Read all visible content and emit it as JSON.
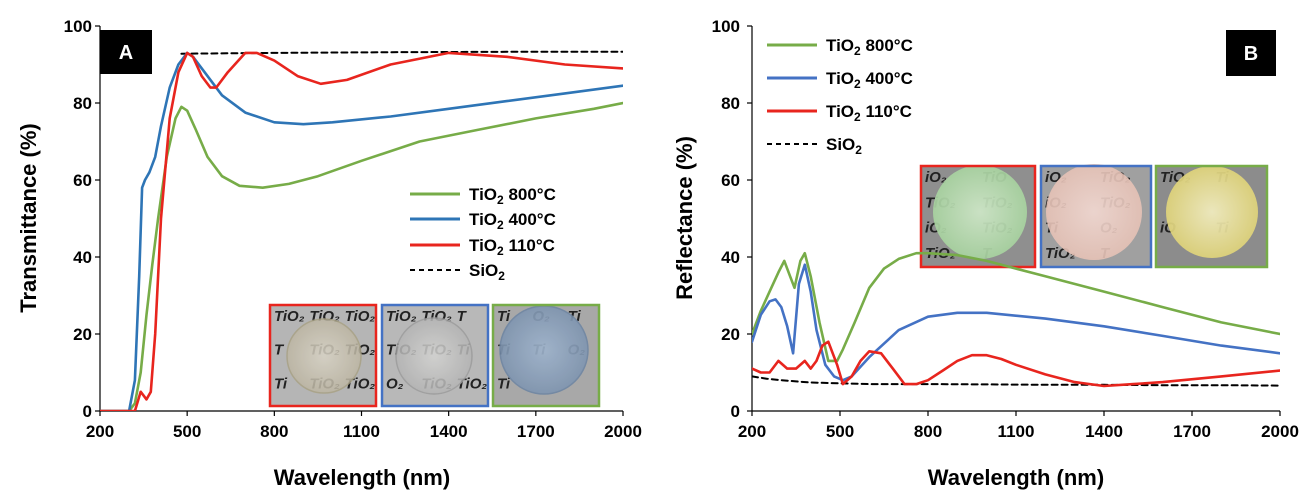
{
  "chart_data": [
    {
      "panel": "A",
      "type": "line",
      "title": "",
      "xlabel": "Wavelength (nm)",
      "ylabel": "Transmittance (%)",
      "xlim": [
        200,
        2000
      ],
      "ylim": [
        0,
        100
      ],
      "xticks": [
        200,
        500,
        800,
        1100,
        1400,
        1700,
        2000
      ],
      "yticks": [
        0,
        20,
        40,
        60,
        80,
        100
      ],
      "grid": false,
      "legend_position": "center-right",
      "series": [
        {
          "name": "TiO2 800°C",
          "color": "#77AC48",
          "dashed": false,
          "x": [
            200,
            300,
            320,
            340,
            360,
            380,
            400,
            430,
            460,
            480,
            500,
            530,
            570,
            620,
            680,
            760,
            850,
            950,
            1100,
            1300,
            1500,
            1700,
            1900,
            2000
          ],
          "y": [
            0,
            0,
            2,
            10,
            25,
            38,
            50,
            66,
            76,
            79,
            78,
            73,
            66,
            61,
            58.5,
            58,
            59,
            61,
            65,
            70,
            73,
            76,
            78.5,
            80
          ]
        },
        {
          "name": "TiO2 400°C",
          "color": "#2E75B6",
          "dashed": false,
          "x": [
            200,
            300,
            320,
            335,
            345,
            355,
            370,
            390,
            410,
            440,
            470,
            500,
            520,
            560,
            620,
            700,
            800,
            900,
            1000,
            1200,
            1400,
            1600,
            1800,
            2000
          ],
          "y": [
            0,
            0,
            8,
            35,
            58,
            60,
            62,
            66,
            74,
            84,
            90,
            93,
            92,
            88,
            82,
            77.5,
            75,
            74.5,
            75,
            76.5,
            78.5,
            80.5,
            82.5,
            84.5
          ]
        },
        {
          "name": "TiO2 110°C",
          "color": "#E8251E",
          "dashed": false,
          "x": [
            200,
            320,
            340,
            350,
            360,
            375,
            390,
            410,
            440,
            470,
            500,
            520,
            550,
            580,
            600,
            640,
            700,
            740,
            800,
            880,
            960,
            1050,
            1200,
            1400,
            1600,
            1800,
            2000
          ],
          "y": [
            0,
            0,
            5,
            4,
            3,
            5,
            20,
            50,
            76,
            88,
            93,
            92,
            87,
            84,
            84,
            88,
            93,
            93,
            91,
            87,
            85,
            86,
            90,
            93,
            92,
            90,
            89
          ]
        },
        {
          "name": "SiO2",
          "color": "#000000",
          "dashed": true,
          "x": [
            480,
            800,
            1200,
            1600,
            2000
          ],
          "y": [
            92.8,
            93,
            93.2,
            93.3,
            93.3
          ]
        }
      ],
      "legend": [
        "TiO₂ 800°C",
        "TiO₂ 400°C",
        "TiO₂ 110°C",
        "SiO₂"
      ],
      "inset_photo_text": [
        "TiO₂",
        "TiO₂",
        "TiO₂",
        "T",
        "TiO₂",
        "TiO₂",
        "Ti",
        "TiO₂",
        "TiO₂",
        "TiO₂",
        "TiO₂",
        "T",
        "TiO₂",
        "TiO₂",
        "Ti",
        "O₂",
        "TiO₂",
        "TiO₂",
        "Ti",
        "O₂",
        "Ti",
        "Ti",
        "Ti",
        "O₂",
        "Ti"
      ]
    },
    {
      "panel": "B",
      "type": "line",
      "title": "",
      "xlabel": "Wavelength (nm)",
      "ylabel": "Reflectance (%)",
      "xlim": [
        200,
        2000
      ],
      "ylim": [
        0,
        100
      ],
      "xticks": [
        200,
        500,
        800,
        1100,
        1400,
        1700,
        2000
      ],
      "yticks": [
        0,
        20,
        40,
        60,
        80,
        100
      ],
      "grid": false,
      "legend_position": "top-left",
      "series": [
        {
          "name": "TiO2 800°C",
          "color": "#77AC48",
          "dashed": false,
          "x": [
            200,
            230,
            260,
            290,
            310,
            330,
            345,
            365,
            380,
            400,
            430,
            460,
            490,
            510,
            550,
            600,
            650,
            700,
            760,
            800,
            900,
            1000,
            1200,
            1400,
            1600,
            1800,
            2000
          ],
          "y": [
            20,
            26,
            31,
            36,
            39,
            35,
            32,
            39,
            41,
            35,
            23,
            13,
            13,
            16,
            23,
            32,
            37,
            39.5,
            41,
            41,
            40.5,
            39,
            35,
            31,
            27,
            23,
            20
          ]
        },
        {
          "name": "TiO2 400°C",
          "color": "#4472C4",
          "dashed": false,
          "x": [
            200,
            230,
            260,
            280,
            300,
            320,
            340,
            360,
            380,
            400,
            420,
            450,
            480,
            510,
            540,
            600,
            700,
            800,
            900,
            1000,
            1200,
            1400,
            1600,
            1800,
            2000
          ],
          "y": [
            18,
            25,
            28.5,
            29,
            27,
            22,
            15,
            33,
            38,
            31,
            21,
            12,
            9,
            8,
            9,
            14,
            21,
            24.5,
            25.5,
            25.5,
            24,
            22,
            19.5,
            17,
            15
          ]
        },
        {
          "name": "TiO2 110°C",
          "color": "#E8251E",
          "dashed": false,
          "x": [
            200,
            230,
            260,
            290,
            320,
            350,
            380,
            400,
            420,
            440,
            460,
            490,
            510,
            540,
            570,
            600,
            640,
            680,
            720,
            760,
            800,
            850,
            900,
            950,
            1000,
            1050,
            1100,
            1200,
            1300,
            1400,
            1500,
            1600,
            1800,
            2000
          ],
          "y": [
            11,
            10,
            10,
            13,
            11,
            11,
            13,
            11,
            13,
            17,
            18,
            12,
            7,
            9,
            13,
            15.5,
            15,
            11,
            7,
            7,
            8,
            10.5,
            13,
            14.5,
            14.5,
            13.5,
            12,
            9.5,
            7.5,
            6.5,
            7,
            7.5,
            9,
            10.5
          ]
        },
        {
          "name": "SiO2",
          "color": "#000000",
          "dashed": true,
          "x": [
            200,
            250,
            300,
            350,
            400,
            500,
            600,
            800,
            1000,
            1200,
            1400,
            1600,
            1800,
            2000
          ],
          "y": [
            9,
            8.4,
            8,
            7.7,
            7.4,
            7.2,
            7,
            7,
            6.9,
            6.8,
            6.8,
            6.7,
            6.7,
            6.6
          ]
        }
      ],
      "legend": [
        "TiO₂ 800°C",
        "TiO₂ 400°C",
        "TiO₂ 110°C",
        "SiO₂"
      ],
      "inset_photo_text": [
        "iO₂",
        "TiO",
        "TiO₂",
        "TiO₂",
        "iO₂",
        "TiO₂",
        "TiO₂",
        "T",
        "iO₂",
        "TiO₂",
        "iO₂",
        "TiO₂",
        "Ti",
        "O₂",
        "TiO₂",
        "T",
        "TiO₂",
        "Ti",
        "iO",
        "Ti"
      ]
    }
  ],
  "colors": {
    "green": "#77AC48",
    "blue_a": "#2E75B6",
    "blue_b": "#4472C4",
    "red": "#E8251E",
    "label_box": "#000000",
    "photo_bg": "#a9a9a9"
  }
}
